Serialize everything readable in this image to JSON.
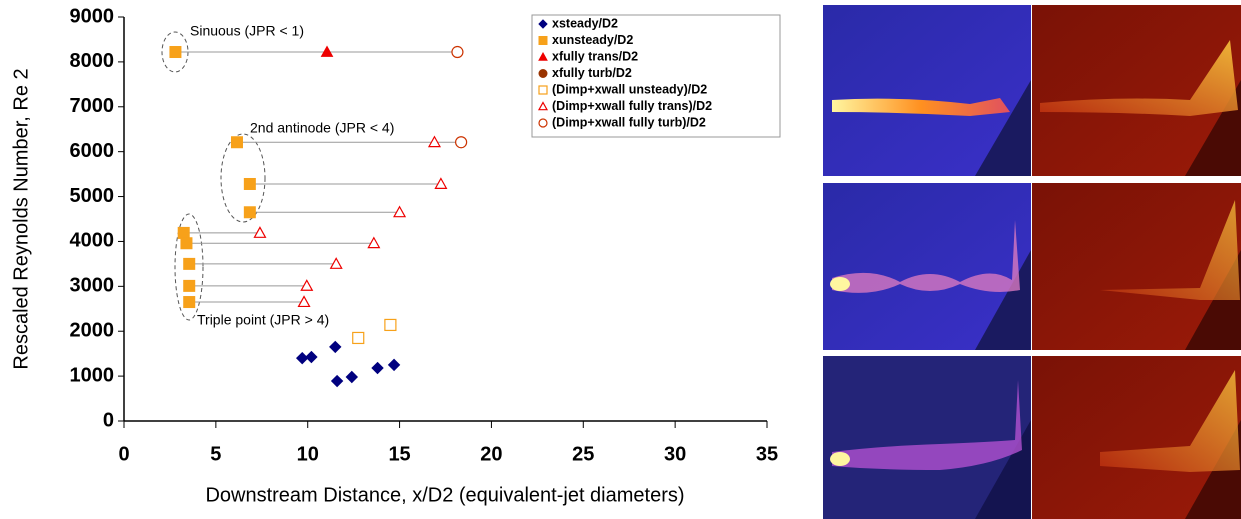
{
  "chart_data": {
    "type": "scatter",
    "x_label": "Downstream Distance, x/D2 (equivalent-jet diameters)",
    "y_label": "Rescaled Reynolds Number, Re 2",
    "xlim": [
      0,
      35
    ],
    "xticks": [
      0,
      5,
      10,
      15,
      20,
      25,
      30,
      35
    ],
    "ylim": [
      0,
      9000
    ],
    "yticks": [
      0,
      1000,
      2000,
      3000,
      4000,
      5000,
      6000,
      7000,
      8000,
      9000
    ],
    "grid": false,
    "legend": "upper-right",
    "annotations": [
      "Sinuous (JPR < 1)",
      "2nd antinode (JPR < 4)",
      "Triple point (JPR > 4)"
    ],
    "series": [
      {
        "name": "xsteady/D2",
        "color": "#00007f",
        "marker": "diamond",
        "filled": true,
        "x": [
          9.7,
          10.2,
          11.5,
          11.6,
          12.4,
          13.8,
          14.7
        ],
        "values": [
          1400,
          1425,
          1650,
          890,
          980,
          1180,
          1250
        ]
      },
      {
        "name": "xunsteady/D2",
        "color": "#f7a11a",
        "marker": "square",
        "filled": true,
        "x": [
          2.8,
          6.15,
          6.85,
          6.85,
          3.25,
          3.4,
          3.55,
          3.55,
          3.55
        ],
        "values": [
          8220,
          6210,
          5280,
          4650,
          4190,
          3960,
          3500,
          3010,
          2650
        ]
      },
      {
        "name": "xfully trans/D2",
        "color": "#ee0000",
        "marker": "triangle",
        "filled": true,
        "x": [
          11.05
        ],
        "values": [
          8220
        ]
      },
      {
        "name": "xfully turb/D2",
        "color": "#993300",
        "marker": "circle",
        "filled": true,
        "x": [],
        "values": []
      },
      {
        "name": "(Dimp+xwall unsteady)/D2",
        "color": "#f7a11a",
        "marker": "square",
        "filled": false,
        "x": [
          12.75,
          14.5
        ],
        "values": [
          1850,
          2140
        ]
      },
      {
        "name": "(Dimp+xwall fully trans)/D2",
        "color": "#ee0000",
        "marker": "triangle",
        "filled": false,
        "x": [
          16.9,
          17.25,
          15.0,
          7.4,
          13.6,
          11.55,
          9.95,
          9.8
        ],
        "values": [
          6210,
          5280,
          4650,
          4190,
          3960,
          3500,
          3010,
          2650
        ]
      },
      {
        "name": "(Dimp+xwall fully turb)/D2",
        "color": "#cc3300",
        "marker": "circle",
        "filled": false,
        "x": [
          18.15,
          18.35
        ],
        "values": [
          8220,
          6210
        ]
      }
    ]
  }
}
